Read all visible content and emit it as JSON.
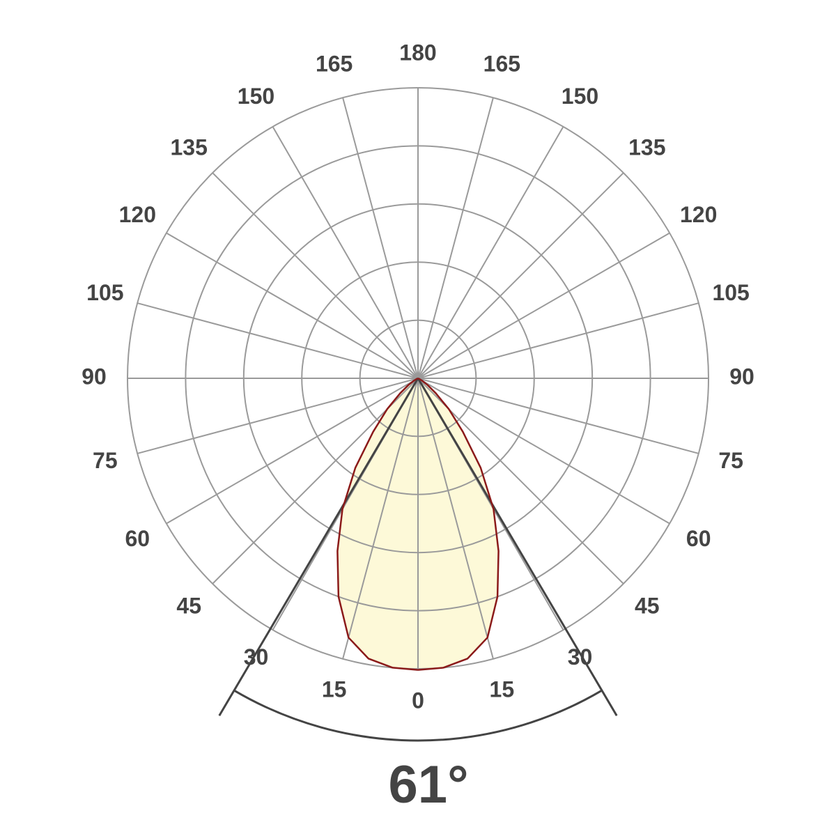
{
  "chart_data": {
    "type": "polar",
    "angles": [
      0,
      5,
      10,
      15,
      20,
      25,
      30,
      35,
      40,
      45,
      50,
      55,
      60,
      65,
      70,
      75,
      80,
      85,
      90
    ],
    "values": [
      5.02,
      5.0,
      4.9,
      4.62,
      4.0,
      3.28,
      2.6,
      1.88,
      1.2,
      0.75,
      0.4,
      0.2,
      0.08,
      0.02,
      0,
      0,
      0,
      0,
      0
    ],
    "rlim": [
      0,
      5
    ],
    "rticks": [
      1,
      2,
      3,
      4,
      5
    ],
    "angle_ticks": [
      0,
      15,
      30,
      45,
      60,
      75,
      90,
      105,
      120,
      135,
      150,
      165,
      180
    ],
    "color": "#8b1a1a",
    "fill": "#fdf9d8",
    "grid": true,
    "beam_angle": {
      "value": 61,
      "label": "61°"
    }
  }
}
